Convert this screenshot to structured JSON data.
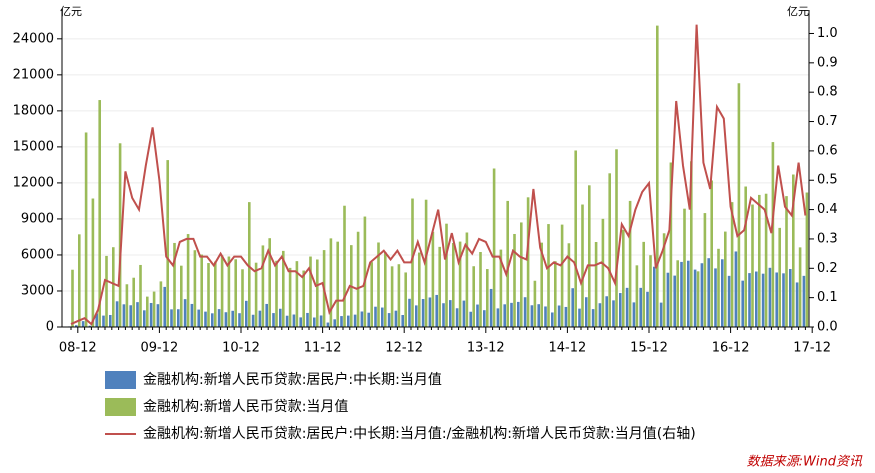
{
  "chart_data": {
    "type": "bar-line",
    "y_unit": "亿元",
    "y2_unit": "亿元",
    "source": "数据来源:Wind资讯",
    "categories": [
      null,
      "08-12",
      null,
      null,
      null,
      null,
      null,
      null,
      null,
      null,
      null,
      null,
      null,
      "09-12",
      null,
      null,
      null,
      null,
      null,
      null,
      null,
      null,
      null,
      null,
      null,
      "10-12",
      null,
      null,
      null,
      null,
      null,
      null,
      null,
      null,
      null,
      null,
      null,
      "11-12",
      null,
      null,
      null,
      null,
      null,
      null,
      null,
      null,
      null,
      null,
      null,
      "12-12",
      null,
      null,
      null,
      null,
      null,
      null,
      null,
      null,
      null,
      null,
      null,
      "13-12",
      null,
      null,
      null,
      null,
      null,
      null,
      null,
      null,
      null,
      null,
      null,
      "14-12",
      null,
      null,
      null,
      null,
      null,
      null,
      null,
      null,
      null,
      null,
      null,
      "15-12",
      null,
      null,
      null,
      null,
      null,
      null,
      null,
      null,
      null,
      null,
      null,
      "16-12",
      null,
      null,
      null,
      null,
      null,
      null,
      null,
      null,
      null,
      null,
      null,
      "17-12"
    ],
    "series": [
      {
        "name": "金融机构:新增人民币贷款:居民户:中长期:当月值",
        "color": "#4f81bd",
        "kind": "bar",
        "values": [
          50,
          150,
          490,
          110,
          1130,
          950,
          1000,
          2140,
          1890,
          1810,
          2070,
          1390,
          2000,
          1900,
          3340,
          1470,
          1480,
          2320,
          1920,
          1450,
          1280,
          1140,
          1490,
          1230,
          1350,
          1150,
          2180,
          1020,
          1360,
          1920,
          1160,
          1520,
          940,
          1040,
          800,
          1170,
          790,
          960,
          370,
          640,
          910,
          950,
          1030,
          1290,
          1190,
          1690,
          1620,
          1160,
          1360,
          1000,
          2350,
          1800,
          2330,
          2460,
          2670,
          1980,
          2240,
          1560,
          2200,
          1270,
          1870,
          1400,
          3170,
          1550,
          1890,
          2010,
          2090,
          2480,
          1810,
          1900,
          1710,
          1210,
          1790,
          1670,
          3230,
          1530,
          2480,
          1490,
          1980,
          2560,
          2220,
          2830,
          3260,
          2050,
          3260,
          2930,
          5020,
          2030,
          4520,
          4280,
          5420,
          5520,
          4780,
          5310,
          5730,
          4880,
          5640,
          4260,
          6290,
          3860,
          4490,
          4620,
          4440,
          4930,
          4540,
          4470,
          4830,
          3710,
          4260,
          null
        ]
      },
      {
        "name": "金融机构:新增人民币贷款:当月值",
        "color": "#9bbb59",
        "kind": "bar",
        "values": [
          4770,
          7718,
          16200,
          10700,
          18900,
          5920,
          6645,
          15300,
          3559,
          4104,
          5167,
          2530,
          2948,
          3798,
          13900,
          7000,
          5107,
          7740,
          6394,
          6034,
          5328,
          5452,
          5955,
          5872,
          5641,
          4807,
          10400,
          5356,
          6794,
          7396,
          5516,
          6339,
          4925,
          5485,
          4700,
          5868,
          5622,
          6405,
          7381,
          7107,
          10100,
          6818,
          7932,
          9198,
          5401,
          7039,
          6232,
          5053,
          5229,
          4543,
          10700,
          6200,
          10600,
          7929,
          6674,
          8605,
          6999,
          7113,
          7870,
          5061,
          6246,
          4825,
          13200,
          6445,
          10500,
          7747,
          8708,
          10800,
          3852,
          7025,
          8572,
          5483,
          8527,
          6973,
          14700,
          10200,
          11800,
          7079,
          9008,
          12800,
          14800,
          8096,
          10500,
          5136,
          7089,
          5978,
          25100,
          7805,
          13700,
          5556,
          9855,
          13800,
          4636,
          9487,
          12200,
          6513,
          7946,
          10400,
          20300,
          11700,
          10200,
          11000,
          11100,
          15400,
          8255,
          10900,
          12700,
          6632,
          11200,
          null
        ]
      },
      {
        "name": "金融机构:新增人民币贷款:居民户:中长期:当月值:/金融机构:新增人民币贷款:当月值(右轴)",
        "color": "#c0504d",
        "kind": "line",
        "axis": "y2",
        "values": [
          0.01,
          0.02,
          0.03,
          0.01,
          0.06,
          0.16,
          0.15,
          0.14,
          0.53,
          0.44,
          0.4,
          0.55,
          0.68,
          0.5,
          0.24,
          0.21,
          0.29,
          0.3,
          0.3,
          0.24,
          0.24,
          0.21,
          0.25,
          0.21,
          0.24,
          0.24,
          0.21,
          0.19,
          0.2,
          0.26,
          0.21,
          0.24,
          0.19,
          0.19,
          0.17,
          0.2,
          0.14,
          0.15,
          0.05,
          0.09,
          0.09,
          0.14,
          0.13,
          0.14,
          0.22,
          0.24,
          0.26,
          0.23,
          0.26,
          0.22,
          0.22,
          0.29,
          0.22,
          0.31,
          0.4,
          0.23,
          0.32,
          0.22,
          0.28,
          0.25,
          0.3,
          0.29,
          0.24,
          0.24,
          0.18,
          0.26,
          0.24,
          0.23,
          0.47,
          0.27,
          0.2,
          0.22,
          0.21,
          0.24,
          0.22,
          0.15,
          0.21,
          0.21,
          0.22,
          0.2,
          0.15,
          0.35,
          0.31,
          0.4,
          0.46,
          0.49,
          0.2,
          0.26,
          0.33,
          0.77,
          0.55,
          0.4,
          1.03,
          0.56,
          0.47,
          0.75,
          0.71,
          0.41,
          0.31,
          0.33,
          0.44,
          0.42,
          0.4,
          0.32,
          0.55,
          0.41,
          0.38,
          0.56,
          0.38,
          null
        ]
      }
    ],
    "ylim": [
      0,
      26400
    ],
    "yticks": [
      0,
      3000,
      6000,
      9000,
      12000,
      15000,
      18000,
      21000,
      24000
    ],
    "y2lim": [
      0,
      1.08
    ],
    "y2ticks": [
      {
        "value": 0,
        "label": "0.0"
      },
      0.1,
      0.2,
      0.3,
      0.4,
      0.5,
      0.6,
      0.7,
      0.8,
      0.9,
      {
        "value": 1,
        "label": "1.0"
      }
    ],
    "grid": true,
    "legend": "bottom"
  }
}
